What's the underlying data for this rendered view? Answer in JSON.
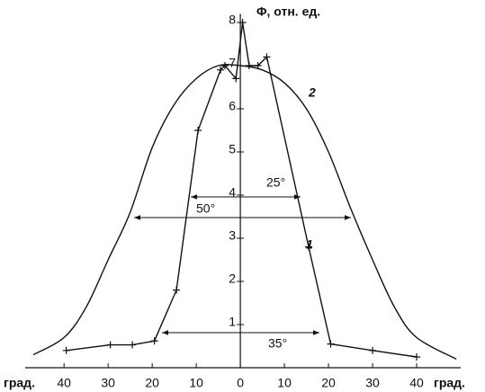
{
  "chart_data": {
    "type": "line",
    "y_label": "Φ, отн. ед.",
    "x_label_left": "град.",
    "x_label_right": "град.",
    "xlim": [
      -48,
      50
    ],
    "ylim": [
      0,
      8.2
    ],
    "xticks": [
      {
        "value": -40,
        "label": "40"
      },
      {
        "value": -30,
        "label": "30"
      },
      {
        "value": -20,
        "label": "20"
      },
      {
        "value": -10,
        "label": "10"
      },
      0,
      10,
      20,
      30,
      40
    ],
    "yticks": [
      1,
      2,
      3,
      4,
      5,
      6,
      7,
      8
    ],
    "series": [
      {
        "name": "1",
        "color": "#111111",
        "markers": true,
        "x": [
          -39.5,
          -29.5,
          -24.5,
          -19.5,
          -14.5,
          -9.6,
          -4.5,
          -3.5,
          -1,
          0.5,
          2,
          4,
          6,
          15.5,
          20.5,
          30,
          40
        ],
        "values": [
          0.4,
          0.53,
          0.53,
          0.62,
          1.8,
          5.5,
          6.9,
          7.0,
          6.7,
          8.0,
          7.0,
          7.0,
          7.2,
          2.8,
          0.55,
          0.4,
          0.25
        ]
      },
      {
        "name": "2",
        "color": "#111111",
        "markers": false,
        "x": [
          -47,
          -40,
          -35,
          -30,
          -25,
          -20,
          -15,
          -10,
          -5,
          0,
          5,
          10,
          15,
          20,
          25,
          30,
          35,
          40,
          49
        ],
        "values": [
          0.3,
          0.7,
          1.4,
          2.5,
          3.6,
          5.1,
          6.1,
          6.7,
          7.0,
          7.0,
          6.9,
          6.6,
          6.0,
          5.0,
          3.7,
          2.5,
          1.4,
          0.7,
          0.2
        ]
      }
    ],
    "annotations": [
      "50°",
      "25°",
      "35°"
    ]
  }
}
